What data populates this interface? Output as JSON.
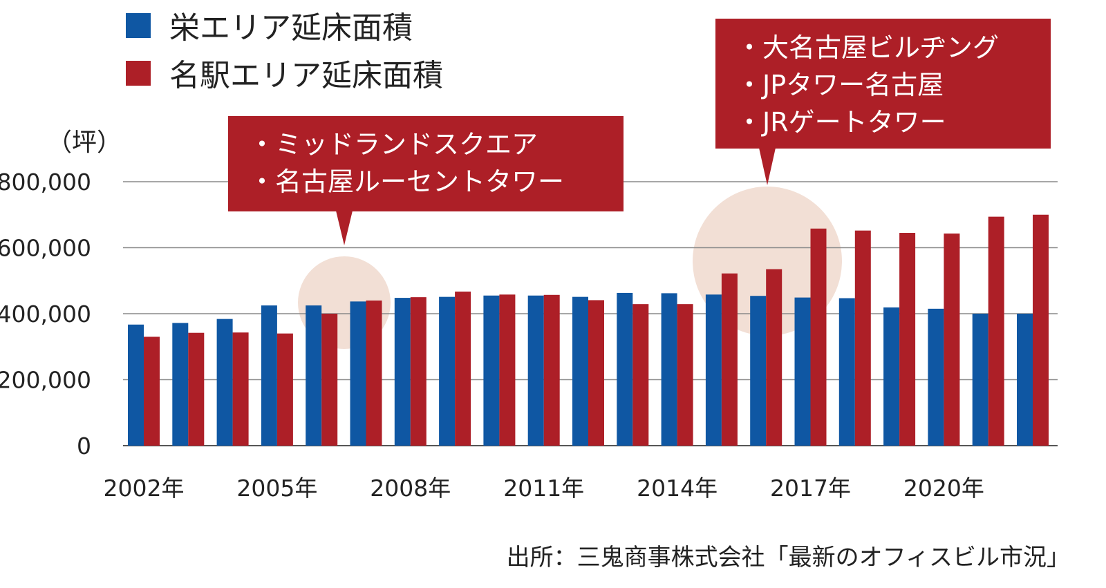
{
  "chart_data": {
    "type": "bar",
    "unit_label": "（坪）",
    "x": [
      "2002年",
      "2003",
      "2004",
      "2005年",
      "2006",
      "2007",
      "2008年",
      "2009",
      "2010",
      "2011年",
      "2012",
      "2013",
      "2014年",
      "2015",
      "2016",
      "2017年",
      "2018",
      "2019",
      "2020年",
      "2021",
      "2022"
    ],
    "tick_labels": [
      "2002年",
      "2005年",
      "2008年",
      "2011年",
      "2014年",
      "2017年",
      "2020年"
    ],
    "series": [
      {
        "name": "栄エリア延床面積",
        "color": "#0f57a3",
        "values": [
          367000,
          372000,
          384000,
          425000,
          425000,
          437000,
          448000,
          451000,
          455000,
          455000,
          451000,
          463000,
          462000,
          458000,
          454000,
          449000,
          447000,
          419000,
          415000,
          400000,
          400000
        ]
      },
      {
        "name": "名駅エリア延床面積",
        "color": "#ad1f27",
        "values": [
          330000,
          342000,
          343000,
          340000,
          400000,
          440000,
          450000,
          467000,
          458000,
          457000,
          441000,
          429000,
          429000,
          522000,
          535000,
          658000,
          652000,
          645000,
          643000,
          694000,
          700000
        ]
      }
    ],
    "ylim": [
      0,
      800000
    ],
    "yticks": [
      "0",
      "200,000",
      "400,000",
      "600,000",
      "800,000"
    ],
    "grid": true,
    "legend_position": "top-left",
    "annotations": [
      {
        "lines": [
          "・ミッドランドスクエア",
          "・名古屋ルーセントタワー"
        ],
        "x": 2006.5
      },
      {
        "lines": [
          "・大名古屋ビルヂング",
          "・JPタワー名古屋",
          "・JRゲートタワー"
        ],
        "x": 2015.5
      }
    ],
    "source": "出所：三鬼商事株式会社「最新のオフィスビル市況」"
  }
}
